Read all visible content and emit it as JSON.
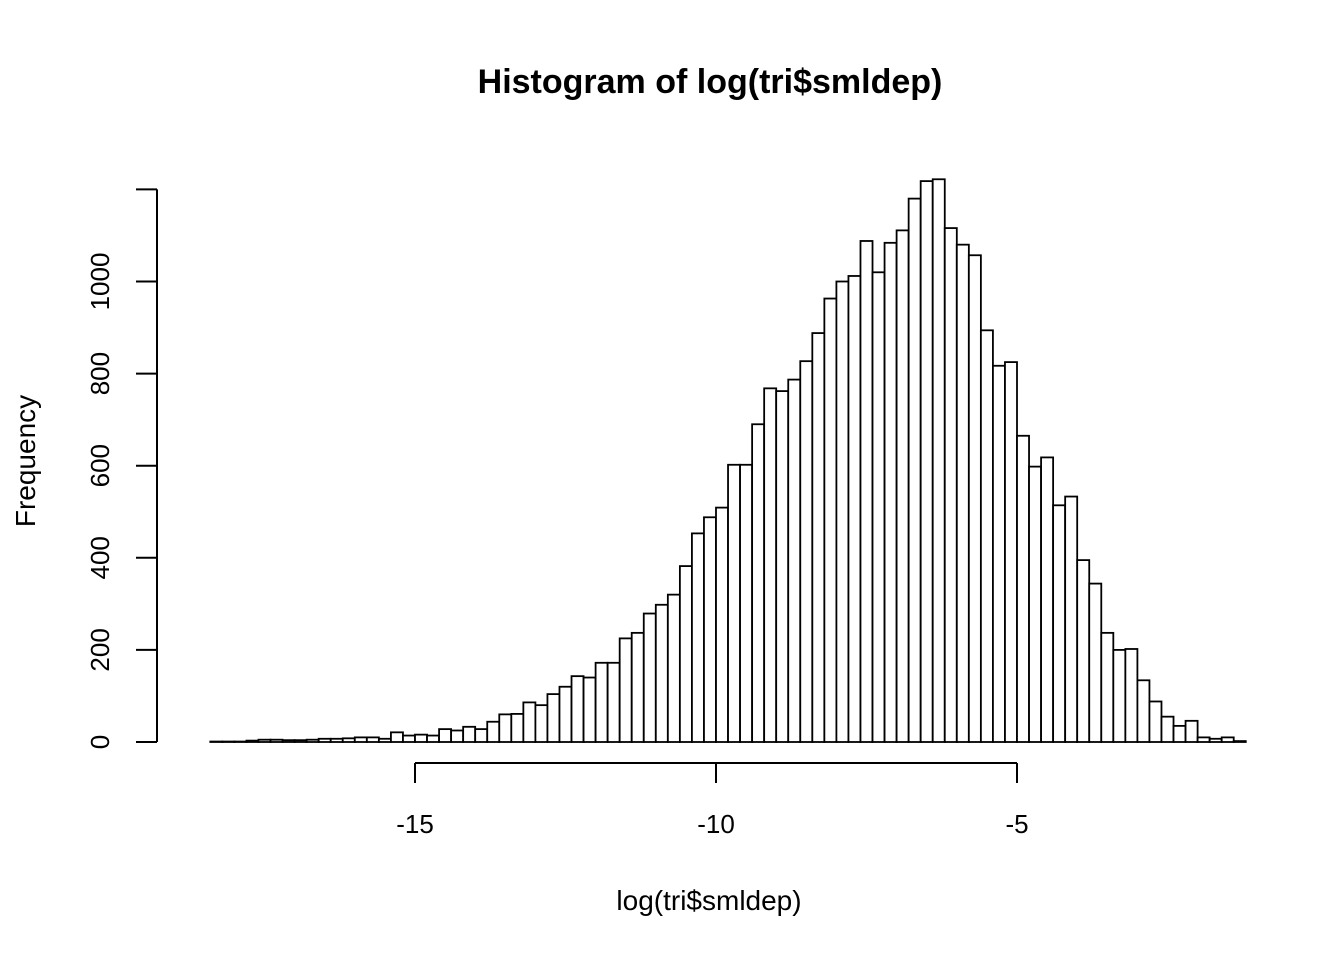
{
  "chart_data": {
    "type": "bar",
    "title": "Histogram of log(tri$smldep)",
    "xlabel": "log(tri$smldep)",
    "ylabel": "Frequency",
    "bin_start": -18.4,
    "bin_width": 0.2,
    "values": [
      1,
      1,
      1,
      3,
      5,
      5,
      4,
      4,
      5,
      7,
      7,
      8,
      10,
      10,
      7,
      21,
      14,
      16,
      14,
      28,
      25,
      33,
      28,
      44,
      60,
      61,
      86,
      80,
      104,
      120,
      143,
      140,
      172,
      172,
      225,
      237,
      279,
      298,
      320,
      382,
      453,
      488,
      509,
      602,
      602,
      690,
      768,
      762,
      787,
      827,
      888,
      963,
      1000,
      1012,
      1088,
      1020,
      1084,
      1111,
      1180,
      1218,
      1222,
      1116,
      1080,
      1057,
      894,
      817,
      825,
      665,
      598,
      618,
      514,
      533,
      395,
      344,
      237,
      200,
      202,
      134,
      88,
      55,
      35,
      46,
      10,
      7,
      10,
      2
    ],
    "xticks": [
      -15,
      -10,
      -5
    ],
    "xtick_labels": [
      "-15",
      "-10",
      "-5"
    ],
    "yticks": [
      0,
      200,
      400,
      600,
      800,
      1000
    ],
    "ytick_labels": [
      "0",
      "200",
      "400",
      "600",
      "800",
      "1000"
    ],
    "xlim": [
      -18.6,
      -1.6
    ],
    "ylim": [
      0,
      1200
    ],
    "grid": false,
    "legend": "none"
  }
}
